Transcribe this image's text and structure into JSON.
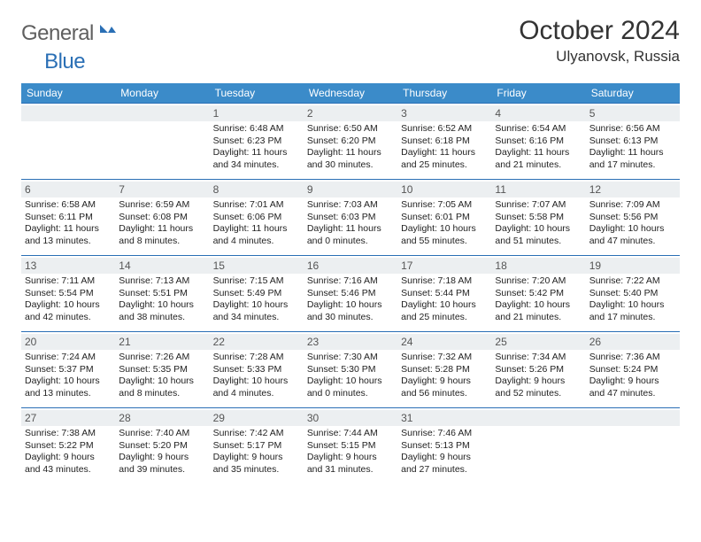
{
  "logo": {
    "text1": "General",
    "text2": "Blue"
  },
  "header": {
    "title": "October 2024",
    "location": "Ulyanovsk, Russia"
  },
  "colors": {
    "header_bg": "#3b8bc9",
    "row_border": "#2a6fb5",
    "daynum_bg": "#eceff1",
    "logo_gray": "#5f5f5f",
    "logo_blue": "#2a6fb5"
  },
  "weekdays": [
    "Sunday",
    "Monday",
    "Tuesday",
    "Wednesday",
    "Thursday",
    "Friday",
    "Saturday"
  ],
  "weeks": [
    [
      null,
      null,
      {
        "n": "1",
        "sr": "6:48 AM",
        "ss": "6:23 PM",
        "dl": "11 hours and 34 minutes."
      },
      {
        "n": "2",
        "sr": "6:50 AM",
        "ss": "6:20 PM",
        "dl": "11 hours and 30 minutes."
      },
      {
        "n": "3",
        "sr": "6:52 AM",
        "ss": "6:18 PM",
        "dl": "11 hours and 25 minutes."
      },
      {
        "n": "4",
        "sr": "6:54 AM",
        "ss": "6:16 PM",
        "dl": "11 hours and 21 minutes."
      },
      {
        "n": "5",
        "sr": "6:56 AM",
        "ss": "6:13 PM",
        "dl": "11 hours and 17 minutes."
      }
    ],
    [
      {
        "n": "6",
        "sr": "6:58 AM",
        "ss": "6:11 PM",
        "dl": "11 hours and 13 minutes."
      },
      {
        "n": "7",
        "sr": "6:59 AM",
        "ss": "6:08 PM",
        "dl": "11 hours and 8 minutes."
      },
      {
        "n": "8",
        "sr": "7:01 AM",
        "ss": "6:06 PM",
        "dl": "11 hours and 4 minutes."
      },
      {
        "n": "9",
        "sr": "7:03 AM",
        "ss": "6:03 PM",
        "dl": "11 hours and 0 minutes."
      },
      {
        "n": "10",
        "sr": "7:05 AM",
        "ss": "6:01 PM",
        "dl": "10 hours and 55 minutes."
      },
      {
        "n": "11",
        "sr": "7:07 AM",
        "ss": "5:58 PM",
        "dl": "10 hours and 51 minutes."
      },
      {
        "n": "12",
        "sr": "7:09 AM",
        "ss": "5:56 PM",
        "dl": "10 hours and 47 minutes."
      }
    ],
    [
      {
        "n": "13",
        "sr": "7:11 AM",
        "ss": "5:54 PM",
        "dl": "10 hours and 42 minutes."
      },
      {
        "n": "14",
        "sr": "7:13 AM",
        "ss": "5:51 PM",
        "dl": "10 hours and 38 minutes."
      },
      {
        "n": "15",
        "sr": "7:15 AM",
        "ss": "5:49 PM",
        "dl": "10 hours and 34 minutes."
      },
      {
        "n": "16",
        "sr": "7:16 AM",
        "ss": "5:46 PM",
        "dl": "10 hours and 30 minutes."
      },
      {
        "n": "17",
        "sr": "7:18 AM",
        "ss": "5:44 PM",
        "dl": "10 hours and 25 minutes."
      },
      {
        "n": "18",
        "sr": "7:20 AM",
        "ss": "5:42 PM",
        "dl": "10 hours and 21 minutes."
      },
      {
        "n": "19",
        "sr": "7:22 AM",
        "ss": "5:40 PM",
        "dl": "10 hours and 17 minutes."
      }
    ],
    [
      {
        "n": "20",
        "sr": "7:24 AM",
        "ss": "5:37 PM",
        "dl": "10 hours and 13 minutes."
      },
      {
        "n": "21",
        "sr": "7:26 AM",
        "ss": "5:35 PM",
        "dl": "10 hours and 8 minutes."
      },
      {
        "n": "22",
        "sr": "7:28 AM",
        "ss": "5:33 PM",
        "dl": "10 hours and 4 minutes."
      },
      {
        "n": "23",
        "sr": "7:30 AM",
        "ss": "5:30 PM",
        "dl": "10 hours and 0 minutes."
      },
      {
        "n": "24",
        "sr": "7:32 AM",
        "ss": "5:28 PM",
        "dl": "9 hours and 56 minutes."
      },
      {
        "n": "25",
        "sr": "7:34 AM",
        "ss": "5:26 PM",
        "dl": "9 hours and 52 minutes."
      },
      {
        "n": "26",
        "sr": "7:36 AM",
        "ss": "5:24 PM",
        "dl": "9 hours and 47 minutes."
      }
    ],
    [
      {
        "n": "27",
        "sr": "7:38 AM",
        "ss": "5:22 PM",
        "dl": "9 hours and 43 minutes."
      },
      {
        "n": "28",
        "sr": "7:40 AM",
        "ss": "5:20 PM",
        "dl": "9 hours and 39 minutes."
      },
      {
        "n": "29",
        "sr": "7:42 AM",
        "ss": "5:17 PM",
        "dl": "9 hours and 35 minutes."
      },
      {
        "n": "30",
        "sr": "7:44 AM",
        "ss": "5:15 PM",
        "dl": "9 hours and 31 minutes."
      },
      {
        "n": "31",
        "sr": "7:46 AM",
        "ss": "5:13 PM",
        "dl": "9 hours and 27 minutes."
      },
      null,
      null
    ]
  ],
  "labels": {
    "sunrise": "Sunrise: ",
    "sunset": "Sunset: ",
    "daylight": "Daylight: "
  }
}
